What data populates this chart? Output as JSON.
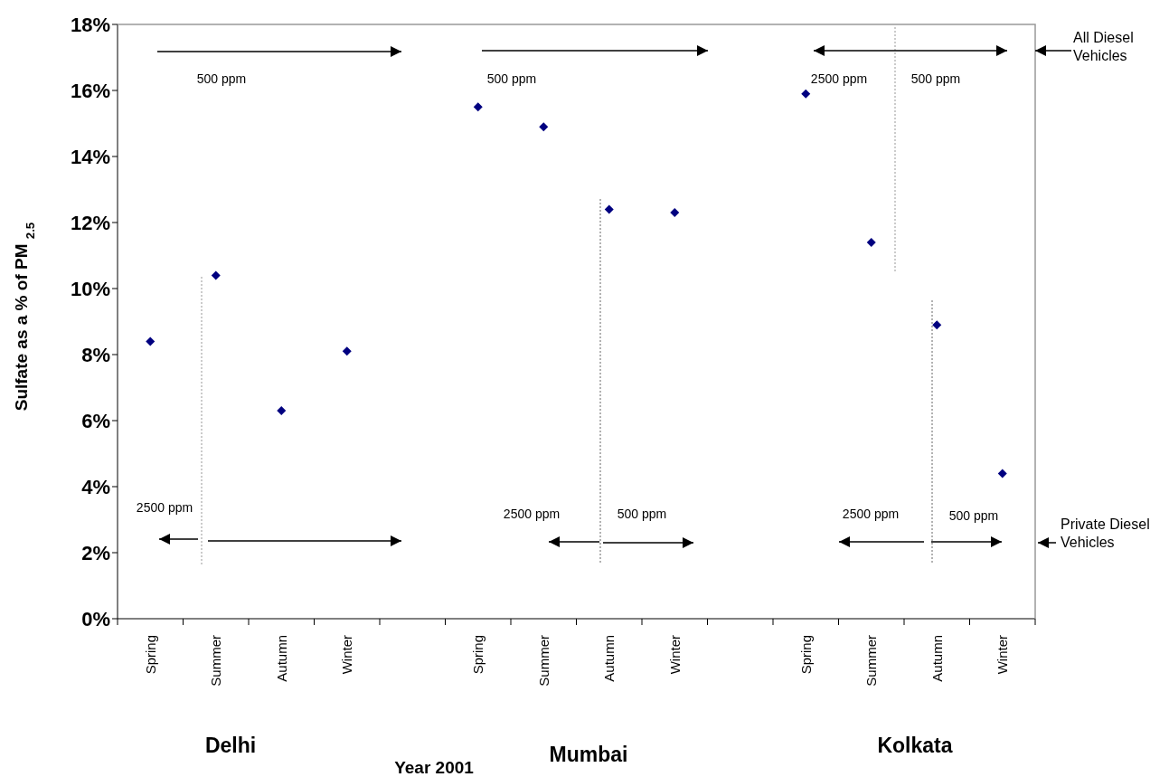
{
  "chart_data": {
    "type": "scatter",
    "ylabel": "Sulfate as a % of PM $_{2.5}$",
    "xlabel": "Year 2001",
    "categories": [
      "Spring",
      "Summer",
      "Autumn",
      "Winter",
      null,
      "Spring",
      "Summer",
      "Autumn",
      "Winter",
      null,
      "Spring",
      "Summer",
      "Autumn",
      "Winter"
    ],
    "series": [
      {
        "color": "#000080",
        "values": [
          8.4,
          10.4,
          6.3,
          8.1,
          null,
          15.5,
          14.9,
          12.4,
          12.3,
          null,
          15.9,
          11.4,
          8.9,
          4.4
        ]
      }
    ],
    "ylim": [
      0,
      18
    ],
    "yticks": [
      {
        "value": 0,
        "label": "0%"
      },
      {
        "value": 2,
        "label": "2%"
      },
      {
        "value": 4,
        "label": "4%"
      },
      {
        "value": 6,
        "label": "6%"
      },
      {
        "value": 8,
        "label": "8%"
      },
      {
        "value": 10,
        "label": "10%"
      },
      {
        "value": 12,
        "label": "12%"
      },
      {
        "value": 14,
        "label": "14%"
      },
      {
        "value": 16,
        "label": "16%"
      },
      {
        "value": 18,
        "label": "18%"
      }
    ],
    "grid": false,
    "legend": false,
    "marker": "diamond",
    "annotations": [
      "500 ppm",
      "500 ppm",
      "2500 ppm",
      "500 ppm",
      "2500 ppm",
      "2500 ppm",
      "500 ppm",
      "2500 ppm",
      "500 ppm",
      "All Diesel Vehicles",
      "Private Diesel Vehicles",
      "Delhi",
      "Mumbai",
      "Kolkata"
    ]
  }
}
